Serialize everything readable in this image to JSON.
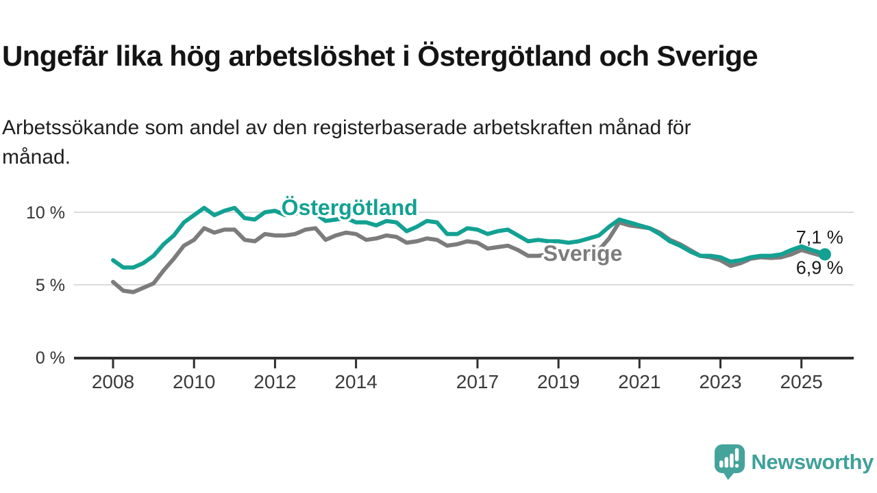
{
  "header": {
    "title": "Ungefär lika hög arbetslöshet i Östergötland och Sverige",
    "subtitle_lines": [
      "Arbetssökande som andel av den registerbaserade arbetskraften månad för",
      "månad."
    ]
  },
  "footer": {
    "brand": "Newsworthy",
    "logo_icon": "speech-bubble-bar-chart-icon"
  },
  "colors": {
    "accent_teal": "#12a192",
    "series_gray": "#7c7c7c",
    "grid_line": "#dadada",
    "axis_line": "#2f2f2f",
    "tick_label": "#3a3a3a",
    "annotation_text": "#1a1a1a",
    "logo_teal": "#44a39b"
  },
  "chart_data": {
    "type": "line",
    "title": "Ungefär lika hög arbetslöshet i Östergötland och Sverige",
    "subtitle": "Arbetssökande som andel av den registerbaserade arbetskraften månad för månad.",
    "unit": "%",
    "xlim": [
      2007.05,
      2026.45
    ],
    "ylim": [
      0,
      11.8
    ],
    "grid": "horizontal",
    "legend_position": "inline-labels",
    "y_ticks": [
      {
        "value": 0,
        "label": "0 %"
      },
      {
        "value": 5,
        "label": "5 %"
      },
      {
        "value": 10,
        "label": "10 %"
      }
    ],
    "x_ticks": [
      {
        "value": 2008,
        "label": "2008"
      },
      {
        "value": 2010,
        "label": "2010"
      },
      {
        "value": 2012,
        "label": "2012"
      },
      {
        "value": 2014,
        "label": "2014"
      },
      {
        "value": 2017,
        "label": "2017"
      },
      {
        "value": 2019,
        "label": "2019"
      },
      {
        "value": 2021,
        "label": "2021"
      },
      {
        "value": 2023,
        "label": "2023"
      },
      {
        "value": 2025,
        "label": "2025"
      }
    ],
    "x": [
      2008,
      2008.25,
      2008.5,
      2008.75,
      2009,
      2009.25,
      2009.5,
      2009.75,
      2010,
      2010.25,
      2010.5,
      2010.75,
      2011,
      2011.25,
      2011.5,
      2011.75,
      2012,
      2012.25,
      2012.5,
      2012.75,
      2013,
      2013.25,
      2013.5,
      2013.75,
      2014,
      2014.25,
      2014.5,
      2014.75,
      2015,
      2015.25,
      2015.5,
      2015.75,
      2016,
      2016.25,
      2016.5,
      2016.75,
      2017,
      2017.25,
      2017.5,
      2017.75,
      2018,
      2018.25,
      2018.5,
      2018.75,
      2019,
      2019.25,
      2019.5,
      2019.75,
      2020,
      2020.25,
      2020.5,
      2020.75,
      2021,
      2021.25,
      2021.5,
      2021.75,
      2022,
      2022.25,
      2022.5,
      2022.75,
      2023,
      2023.25,
      2023.5,
      2023.75,
      2024,
      2024.25,
      2024.5,
      2024.75,
      2025,
      2025.25,
      2025.5,
      2025.58
    ],
    "series": [
      {
        "name": "Östergötland",
        "color": "#12a192",
        "end_label": "7,1 %",
        "end_dot": true,
        "label_anchor": {
          "x": 2013.84,
          "y": 10.33
        },
        "values": [
          6.7,
          6.2,
          6.2,
          6.5,
          7.0,
          7.8,
          8.4,
          9.3,
          9.8,
          10.3,
          9.8,
          10.1,
          10.3,
          9.6,
          9.5,
          10.0,
          10.1,
          9.8,
          9.9,
          10.1,
          9.9,
          9.4,
          9.5,
          9.6,
          9.3,
          9.3,
          9.1,
          9.4,
          9.3,
          8.7,
          9.0,
          9.4,
          9.3,
          8.5,
          8.5,
          8.9,
          8.8,
          8.5,
          8.7,
          8.8,
          8.4,
          8.0,
          8.1,
          8.0,
          8.0,
          7.9,
          8.0,
          8.2,
          8.4,
          9.0,
          9.5,
          9.3,
          9.1,
          8.9,
          8.5,
          8.0,
          7.7,
          7.3,
          7.0,
          7.0,
          6.9,
          6.6,
          6.7,
          6.9,
          7.0,
          7.0,
          7.1,
          7.4,
          7.65,
          7.4,
          7.2,
          7.1
        ]
      },
      {
        "name": "Sverige",
        "color": "#7c7c7c",
        "end_label": "6,9 %",
        "end_dot": false,
        "label_anchor": {
          "x": 2019.6,
          "y": 7.17
        },
        "values": [
          5.2,
          4.6,
          4.5,
          4.8,
          5.1,
          6.0,
          6.8,
          7.7,
          8.1,
          8.9,
          8.6,
          8.8,
          8.8,
          8.1,
          8.0,
          8.5,
          8.4,
          8.4,
          8.5,
          8.8,
          8.9,
          8.1,
          8.4,
          8.6,
          8.5,
          8.1,
          8.2,
          8.4,
          8.3,
          7.9,
          8.0,
          8.2,
          8.1,
          7.7,
          7.8,
          8.0,
          7.9,
          7.5,
          7.6,
          7.7,
          7.4,
          7.0,
          7.0,
          7.1,
          7.1,
          6.9,
          7.0,
          7.2,
          7.4,
          8.2,
          9.3,
          9.1,
          9.0,
          8.9,
          8.6,
          8.1,
          7.8,
          7.4,
          7.0,
          6.9,
          6.7,
          6.3,
          6.5,
          6.8,
          6.9,
          6.85,
          6.9,
          7.1,
          7.4,
          7.2,
          7.0,
          6.9
        ]
      }
    ],
    "annotations": [
      {
        "text": "7,1 %",
        "x": 2025.45,
        "y": 7.85
      },
      {
        "text": "6,9 %",
        "x": 2025.45,
        "y": 5.75
      }
    ]
  }
}
